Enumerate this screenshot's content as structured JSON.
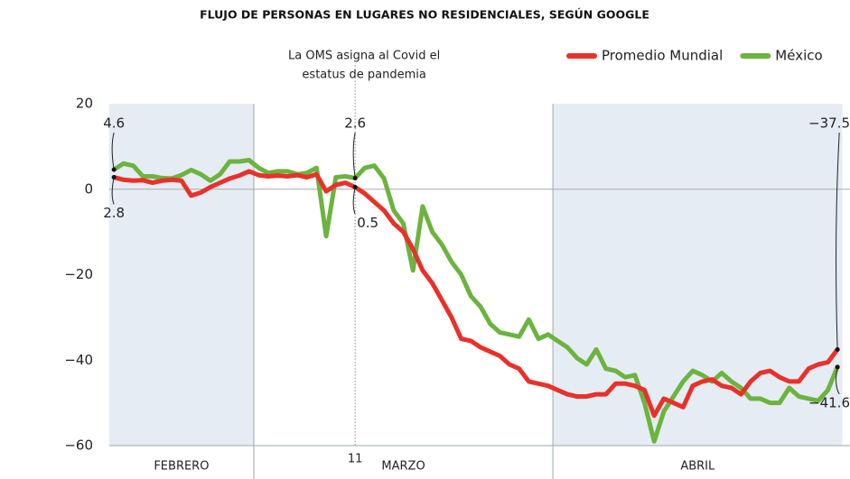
{
  "chart_data": {
    "type": "line",
    "title": "FLUJO DE PERSONAS EN LUGARES NO RESIDENCIALES, SEGÚN GOOGLE",
    "annotation": [
      "La OMS asigna al Covid el",
      "estatus de pandemia"
    ],
    "categories": [
      null,
      null,
      null,
      null,
      null,
      null,
      null,
      null,
      null,
      null,
      null,
      null,
      null,
      null,
      null,
      null,
      null,
      null,
      null,
      null,
      null,
      null,
      null,
      null,
      null,
      "11",
      null,
      null,
      null,
      null,
      null,
      null,
      null,
      null,
      null,
      null,
      null,
      null,
      null,
      null,
      null,
      null,
      null,
      null,
      null,
      null,
      null,
      null,
      null,
      null,
      null,
      null,
      null,
      null,
      null,
      null,
      null,
      null,
      null,
      null,
      null,
      null,
      null,
      null,
      null,
      null,
      null,
      null,
      null,
      null,
      null,
      null,
      null,
      null,
      null,
      null
    ],
    "x_groups": [
      {
        "label": "FEBRERO",
        "count": 15,
        "shaded": true
      },
      {
        "label": "MARZO",
        "count": 31,
        "shaded": false
      },
      {
        "label": "ABRIL",
        "count": 30,
        "shaded": true
      }
    ],
    "ylim": [
      -60,
      20
    ],
    "yticks": [
      20,
      0,
      {
        "value": -20,
        "label": "−20"
      },
      {
        "value": -40,
        "label": "−40"
      },
      {
        "value": -60,
        "label": "−60"
      }
    ],
    "zero_line": true,
    "legend": "top-right",
    "series": [
      {
        "name": "Promedio Mundial",
        "color": "#e8312a",
        "values": [
          2.8,
          2.2,
          2.0,
          2.1,
          1.5,
          2.0,
          2.2,
          2.0,
          -1.5,
          -0.8,
          0.5,
          1.5,
          2.5,
          3.2,
          4.2,
          3.3,
          3.0,
          3.2,
          3.0,
          3.3,
          2.8,
          3.5,
          -0.5,
          1.0,
          1.5,
          0.5,
          -1,
          -3,
          -5,
          -8,
          -10,
          -14,
          -19,
          -22,
          -26,
          -30,
          -35,
          -35.5,
          -37,
          -38,
          -39,
          -41,
          -42,
          -45,
          -45.5,
          -46,
          -47,
          -48,
          -48.5,
          -48.5,
          -48,
          -48,
          -45.5,
          -45.5,
          -46,
          -47,
          -53,
          -49,
          -50,
          -51,
          -46,
          -45,
          -44.5,
          -46,
          -46.5,
          -48,
          -45,
          -43,
          -42.5,
          -44,
          -45,
          -45,
          -42,
          -41,
          -40.5,
          -37.5
        ],
        "value_labels": [
          "2.8",
          null,
          null,
          null,
          null,
          null,
          null,
          null,
          null,
          null,
          null,
          null,
          null,
          null,
          null,
          null,
          null,
          null,
          null,
          null,
          null,
          null,
          null,
          null,
          null,
          "0.5",
          null,
          null,
          null,
          null,
          null,
          null,
          null,
          null,
          null,
          null,
          null,
          null,
          null,
          null,
          null,
          null,
          null,
          null,
          null,
          null,
          null,
          null,
          null,
          null,
          null,
          null,
          null,
          null,
          null,
          null,
          null,
          null,
          null,
          null,
          null,
          null,
          null,
          null,
          null,
          null,
          null,
          null,
          null,
          null,
          null,
          null,
          null,
          null,
          null,
          "−37.5"
        ]
      },
      {
        "name": "México",
        "color": "#6cb33f",
        "values": [
          4.6,
          6,
          5.5,
          3,
          3,
          2.6,
          2.5,
          3.3,
          4.5,
          3.5,
          2,
          3.5,
          6.5,
          6.5,
          6.8,
          5,
          3.8,
          4.2,
          4.2,
          3.5,
          3.8,
          5,
          -11,
          2.8,
          3,
          2.6,
          5,
          5.5,
          2.5,
          -5,
          -8,
          -19,
          -4,
          -10,
          -13,
          -17,
          -20,
          -25,
          -27.5,
          -31.5,
          -33.5,
          -34,
          -34.5,
          -30.5,
          -35,
          -34,
          -35.5,
          -37,
          -39.5,
          -41,
          -37.5,
          -42,
          -42.5,
          -44,
          -43.5,
          -50,
          -59,
          -52,
          -48.5,
          -45,
          -42.5,
          -43.5,
          -45,
          -43,
          -45,
          -46.5,
          -49,
          -49,
          -50,
          -50,
          -46.5,
          -48.5,
          -49,
          -49.5,
          -47,
          -41.6
        ],
        "value_labels": [
          "4.6",
          null,
          null,
          null,
          null,
          null,
          null,
          null,
          null,
          null,
          null,
          null,
          null,
          null,
          null,
          null,
          null,
          null,
          null,
          null,
          null,
          null,
          null,
          null,
          null,
          "2.6",
          null,
          null,
          null,
          null,
          null,
          null,
          null,
          null,
          null,
          null,
          null,
          null,
          null,
          null,
          null,
          null,
          null,
          null,
          null,
          null,
          null,
          null,
          null,
          null,
          null,
          null,
          null,
          null,
          null,
          null,
          null,
          null,
          null,
          null,
          null,
          null,
          null,
          null,
          null,
          null,
          null,
          null,
          null,
          null,
          null,
          null,
          null,
          null,
          null,
          "−41.6"
        ]
      }
    ]
  }
}
